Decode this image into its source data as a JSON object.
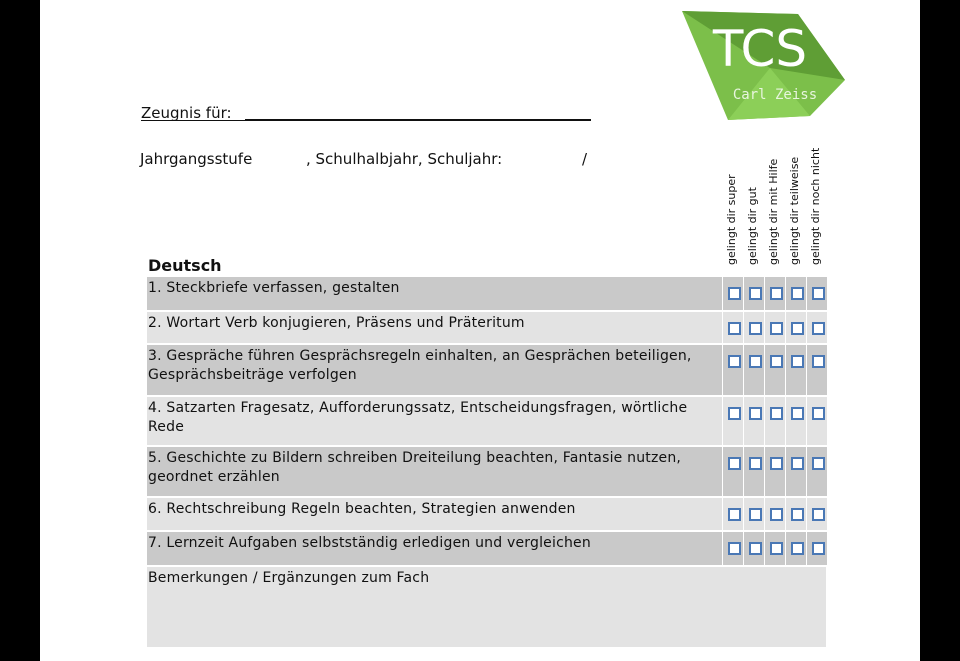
{
  "header": {
    "logo": "TCS",
    "logo_subtitle": "Carl Zeiss",
    "zeugnis_label": "Zeugnis für:",
    "grade_label": "Jahrgangsstufe",
    "term_label": ", Schulhalbjahr, Schuljahr:",
    "slash": "/"
  },
  "table": {
    "subject": "Deutsch",
    "columns": [
      "gelingt dir super",
      "gelingt dir gut",
      "gelingt dir mit Hilfe",
      "gelingt dir teilweise",
      "gelingt dir noch nicht"
    ],
    "rows": [
      "1. Steckbriefe verfassen, gestalten",
      "2. Wortart Verb konjugieren, Präsens und Präteritum",
      "3. Gespräche führen Gesprächsregeln einhalten, an Gesprächen beteiligen, Gesprächsbeiträge verfolgen",
      "4. Satzarten Fragesatz, Aufforderungssatz, Entscheidungsfragen, wörtliche Rede",
      "5. Geschichte zu Bildern schreiben Dreiteilung beachten, Fantasie nutzen, geordnet erzählen",
      "6. Rechtschreibung Regeln beachten, Strategien anwenden",
      "7. Lernzeit Aufgaben selbstständig erledigen und vergleichen"
    ],
    "remarks": "Bemerkungen / Ergänzungen zum Fach"
  }
}
